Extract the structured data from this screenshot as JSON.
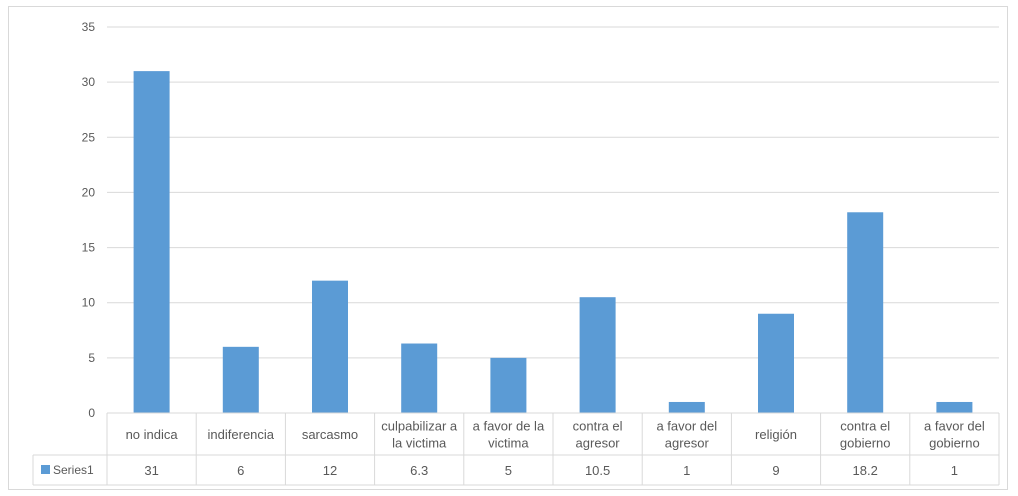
{
  "chart_data": {
    "type": "bar",
    "categories": [
      "no indica",
      "indiferencia",
      "sarcasmo",
      "culpabilizar a la victima",
      "a favor de la victima",
      "contra el agresor",
      "a favor del agresor",
      "religión",
      "contra el gobierno",
      "a favor del gobierno"
    ],
    "category_lines": [
      [
        "no indica"
      ],
      [
        "indiferencia"
      ],
      [
        "sarcasmo"
      ],
      [
        "culpabilizar a",
        "la victima"
      ],
      [
        "a favor de la",
        "victima"
      ],
      [
        "contra el",
        "agresor"
      ],
      [
        "a favor del",
        "agresor"
      ],
      [
        "religión"
      ],
      [
        "contra el",
        "gobierno"
      ],
      [
        "a favor del",
        "gobierno"
      ]
    ],
    "series": [
      {
        "name": "Series1",
        "values": [
          31,
          6,
          12,
          6.3,
          5,
          10.5,
          1,
          9,
          18.2,
          1
        ],
        "value_labels": [
          "31",
          "6",
          "12",
          "6.3",
          "5",
          "10.5",
          "1",
          "9",
          "18.2",
          "1"
        ]
      }
    ],
    "ylim": [
      0,
      35
    ],
    "yticks": [
      0,
      5,
      10,
      15,
      20,
      25,
      30,
      35
    ],
    "grid": true,
    "legend": "data-table",
    "colors": {
      "bar": "#5b9bd5",
      "grid": "#d9d9d9",
      "text": "#595959"
    }
  }
}
